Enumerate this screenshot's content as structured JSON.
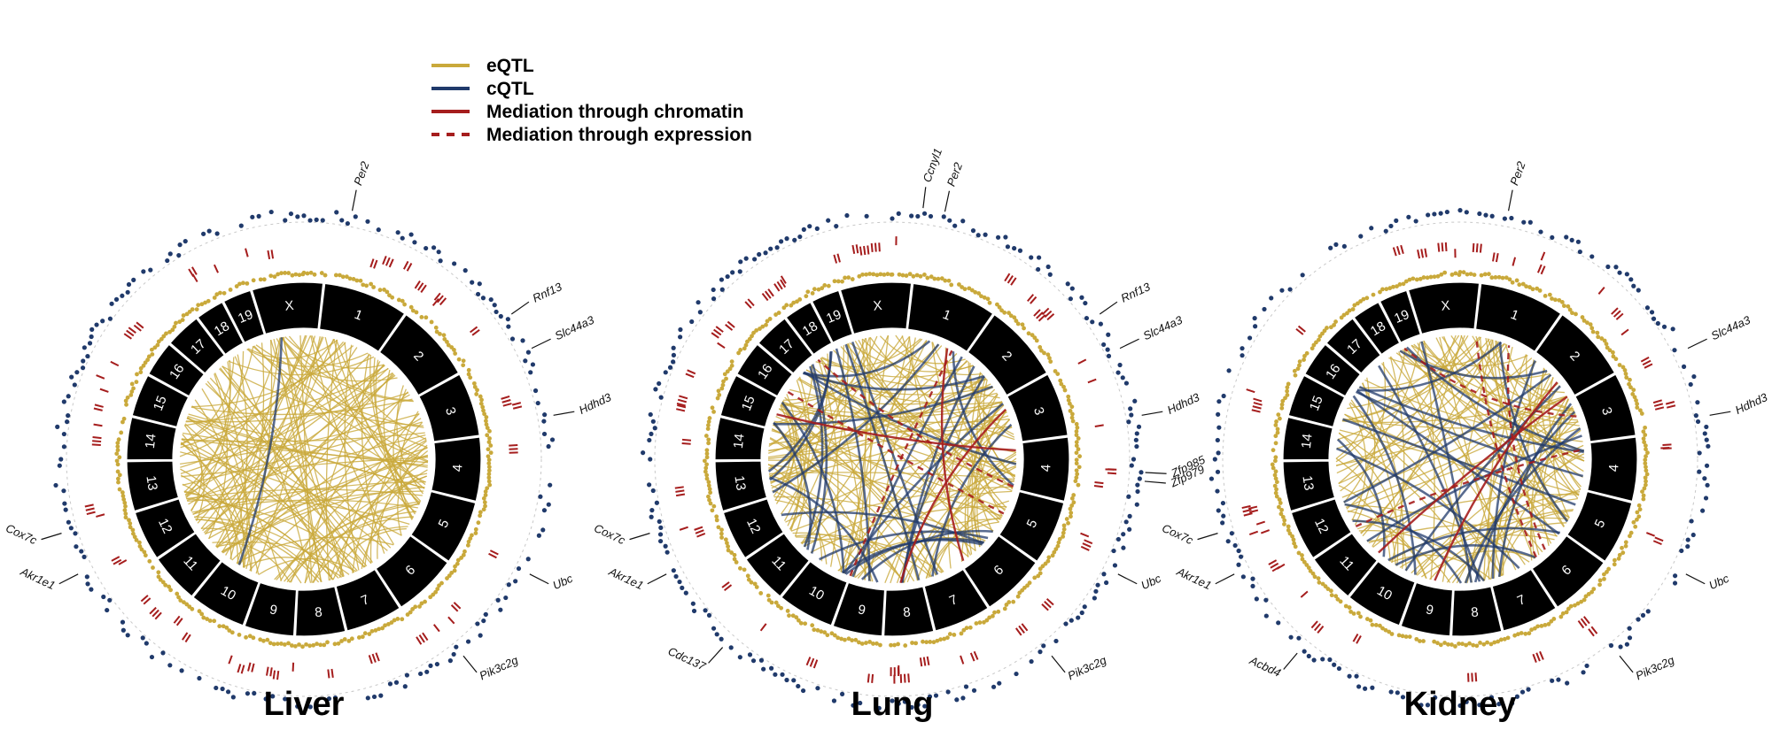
{
  "colors": {
    "eqtl": "#c9a93b",
    "cqtl": "#203a6b",
    "mediation": "#a51d1d",
    "chrom_band": "#000000",
    "chrom_text": "#ffffff"
  },
  "legend": {
    "items": [
      {
        "label": "eQTL",
        "style": "solid",
        "color": "#c9a93b"
      },
      {
        "label": "cQTL",
        "style": "solid",
        "color": "#203a6b"
      },
      {
        "label": "Mediation through chromatin",
        "style": "solid",
        "color": "#a51d1d"
      },
      {
        "label": "Mediation through expression",
        "style": "dashed",
        "color": "#a51d1d"
      }
    ]
  },
  "chromosomes": [
    "X",
    "1",
    "2",
    "3",
    "4",
    "5",
    "6",
    "7",
    "8",
    "9",
    "10",
    "11",
    "12",
    "13",
    "14",
    "15",
    "16",
    "17",
    "18",
    "19"
  ],
  "panels": [
    {
      "title": "Liver",
      "genes": [
        {
          "name": "Per2",
          "angle": 11
        },
        {
          "name": "Rnf13",
          "angle": 55
        },
        {
          "name": "Slc44a3",
          "angle": 64
        },
        {
          "name": "Hdhd3",
          "angle": 80
        },
        {
          "name": "Ubc",
          "angle": 117
        },
        {
          "name": "Pik3c2g",
          "angle": 141
        },
        {
          "name": "Akr1e1",
          "angle": 243
        },
        {
          "name": "Cox7c",
          "angle": 253
        }
      ],
      "links": {
        "eqtl": 150,
        "cqtl": 1,
        "med_chromatin": 0,
        "med_expression": 0
      }
    },
    {
      "title": "Lung",
      "genes": [
        {
          "name": "Ccnyl1",
          "angle": 7
        },
        {
          "name": "Per2",
          "angle": 12
        },
        {
          "name": "Rnf13",
          "angle": 55
        },
        {
          "name": "Slc44a3",
          "angle": 64
        },
        {
          "name": "Hdhd3",
          "angle": 80
        },
        {
          "name": "Zfp985",
          "angle": 93
        },
        {
          "name": "Zfp979",
          "angle": 95
        },
        {
          "name": "Ubc",
          "angle": 117
        },
        {
          "name": "Pik3c2g",
          "angle": 141
        },
        {
          "name": "Cdc137",
          "angle": 222
        },
        {
          "name": "Akr1e1",
          "angle": 243
        },
        {
          "name": "Cox7c",
          "angle": 253
        }
      ],
      "links": {
        "eqtl": 130,
        "cqtl": 26,
        "med_chromatin": 3,
        "med_expression": 3
      }
    },
    {
      "title": "Kidney",
      "genes": [
        {
          "name": "Per2",
          "angle": 11
        },
        {
          "name": "Slc44a3",
          "angle": 64
        },
        {
          "name": "Hdhd3",
          "angle": 80
        },
        {
          "name": "Ubc",
          "angle": 117
        },
        {
          "name": "Pik3c2g",
          "angle": 141
        },
        {
          "name": "Acbd4",
          "angle": 220
        },
        {
          "name": "Akr1e1",
          "angle": 243
        },
        {
          "name": "Cox7c",
          "angle": 253
        }
      ],
      "links": {
        "eqtl": 110,
        "cqtl": 24,
        "med_chromatin": 2,
        "med_expression": 4
      }
    }
  ]
}
